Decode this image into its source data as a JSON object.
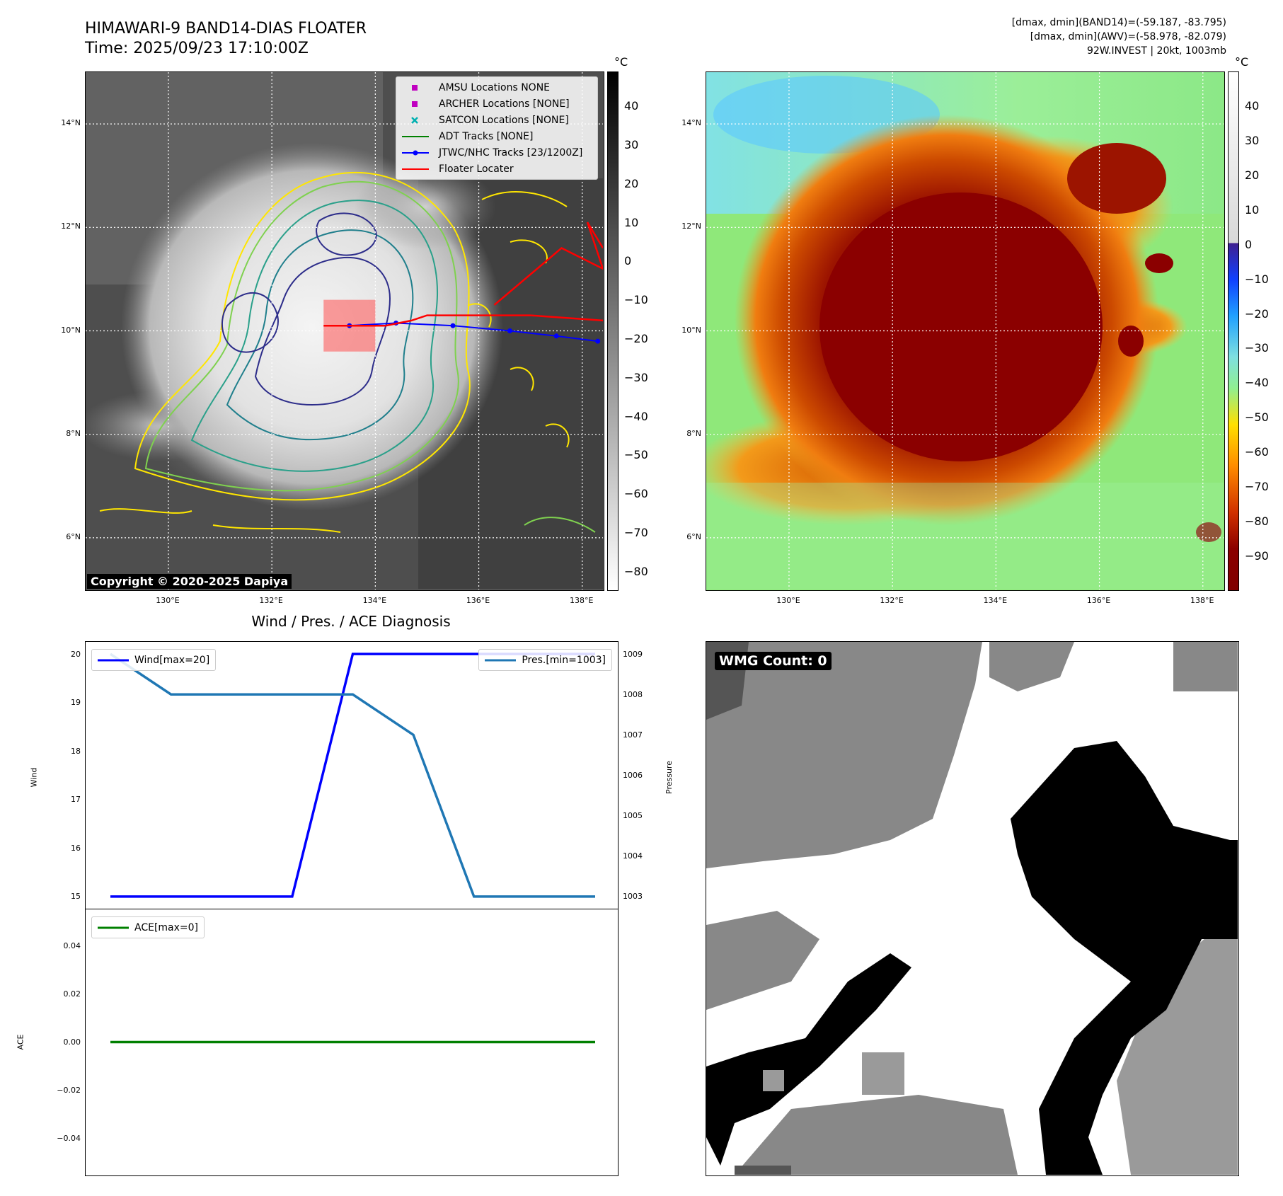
{
  "header": {
    "title_line1": "HIMAWARI-9 BAND14-DIAS FLOATER",
    "title_line2": "Time: 2025/09/23 17:10:00Z",
    "meta_line1": "[dmax, dmin](BAND14)=(-59.187, -83.795)",
    "meta_line2": "[dmax, dmin](AWV)=(-58.978, -82.079)",
    "meta_line3": "92W.INVEST | 20kt, 1003mb"
  },
  "map_axes": {
    "lat_ticks": [
      "14°N",
      "12°N",
      "10°N",
      "8°N",
      "6°N"
    ],
    "lon_ticks": [
      "130°E",
      "132°E",
      "134°E",
      "136°E",
      "138°E"
    ],
    "lat_values": [
      14,
      12,
      10,
      8,
      6
    ],
    "lon_values": [
      130,
      132,
      134,
      136,
      138
    ],
    "lat_range": [
      5,
      15
    ],
    "lon_range": [
      128.4,
      138.4
    ]
  },
  "ir_panel": {
    "colorbar_unit": "°C",
    "colorbar_ticks": [
      "40",
      "30",
      "20",
      "10",
      "0",
      "−10",
      "−20",
      "−30",
      "−40",
      "−50",
      "−60",
      "−70",
      "−80"
    ],
    "colorbar_values": [
      40,
      30,
      20,
      10,
      0,
      -10,
      -20,
      -30,
      -40,
      -50,
      -60,
      -70,
      -80
    ],
    "colorbar_range": [
      -85,
      49
    ],
    "copyright": "Copyright © 2020-2025 Dapiya",
    "legend": [
      {
        "label": "AMSU Locations NONE",
        "marker": "square",
        "color": "#c000c0"
      },
      {
        "label": "ARCHER Locations [NONE]",
        "marker": "square",
        "color": "#c000c0"
      },
      {
        "label": "SATCON Locations [NONE]",
        "marker": "x",
        "color": "#00b0b0"
      },
      {
        "label": "ADT Tracks [NONE]",
        "marker": "line",
        "color": "#008000"
      },
      {
        "label": "JTWC/NHC Tracks [23/1200Z]",
        "marker": "line-dot",
        "color": "#0000ff"
      },
      {
        "label": "Floater Locater",
        "marker": "line",
        "color": "#ff0000"
      }
    ]
  },
  "awv_panel": {
    "colorbar_unit": "°C",
    "colorbar_ticks": [
      "40",
      "30",
      "20",
      "10",
      "0",
      "−10",
      "−20",
      "−30",
      "−40",
      "−50",
      "−60",
      "−70",
      "−80",
      "−90"
    ],
    "colorbar_values": [
      40,
      30,
      20,
      10,
      0,
      -10,
      -20,
      -30,
      -40,
      -50,
      -60,
      -70,
      -80,
      -90
    ],
    "colorbar_range": [
      -100,
      50
    ]
  },
  "diagnosis": {
    "title": "Wind / Pres. / ACE Diagnosis",
    "wind_ylabel": "Wind",
    "pressure_ylabel": "Pressure",
    "ace_ylabel": "ACE",
    "wind_legend": "Wind[max=20]",
    "pres_legend": "Pres.[min=1003]",
    "ace_legend": "ACE[max=0]",
    "wind_ticks": [
      "20",
      "19",
      "18",
      "17",
      "16",
      "15"
    ],
    "pres_ticks": [
      "1009",
      "1008",
      "1007",
      "1006",
      "1005",
      "1004",
      "1003"
    ],
    "ace_ticks": [
      "0.04",
      "0.02",
      "0.00",
      "−0.02",
      "−0.04"
    ],
    "colors": {
      "wind": "#0000ff",
      "pressure": "#1f77b4",
      "ace": "#008000"
    }
  },
  "chart_data": [
    {
      "type": "line",
      "title": "Wind / Pres. / ACE Diagnosis",
      "x": [
        0,
        1,
        2,
        3,
        4,
        5,
        6,
        7,
        8
      ],
      "series": [
        {
          "name": "Wind[max=20]",
          "axis": "left",
          "values": [
            15,
            15,
            15,
            15,
            20,
            20,
            20,
            20,
            20
          ]
        },
        {
          "name": "Pres.[min=1003]",
          "axis": "right",
          "values": [
            1009,
            1008,
            1008,
            1008,
            1008,
            1007,
            1003,
            1003,
            1003
          ]
        }
      ],
      "xlabel": "",
      "ylabel": "Wind",
      "ylabel_right": "Pressure",
      "ylim": [
        14.75,
        20.25
      ],
      "ylim_right": [
        1002.7,
        1009.3
      ]
    },
    {
      "type": "line",
      "x": [
        0,
        1,
        2,
        3,
        4,
        5,
        6,
        7,
        8
      ],
      "series": [
        {
          "name": "ACE[max=0]",
          "values": [
            0,
            0,
            0,
            0,
            0,
            0,
            0,
            0,
            0
          ]
        }
      ],
      "xlabel": "",
      "ylabel": "ACE",
      "ylim": [
        -0.055,
        0.055
      ]
    }
  ],
  "wmg_panel": {
    "badge": "WMG Count: 0"
  }
}
